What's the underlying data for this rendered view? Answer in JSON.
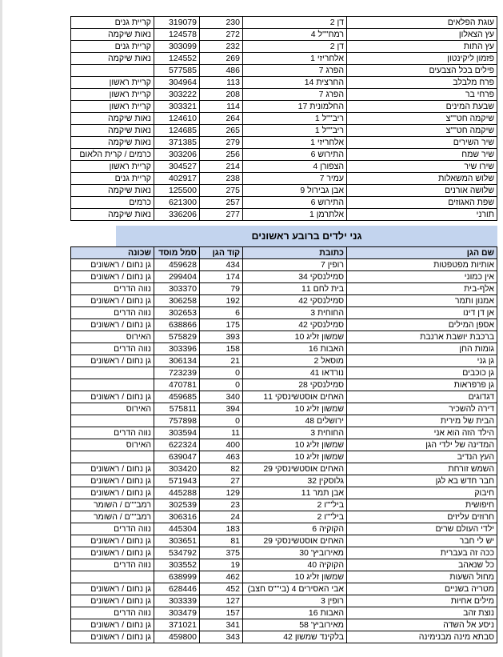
{
  "colors": {
    "title_band_bg": "#c3d4ee",
    "header_row_bg": "#cdd9ef",
    "table_border": "#000000",
    "page_edge": "#e2e2e2"
  },
  "section": {
    "title": "גני ילדים ברובע ראשונים"
  },
  "table1": {
    "rows": [
      [
        "עוגת הפלאים",
        "דן 2",
        "230",
        "319079",
        "קריית גנים"
      ],
      [
        "עץ הצאלון",
        "רמח\"\"ל 4",
        "272",
        "124578",
        "נאות שיקמה"
      ],
      [
        "עץ התות",
        "דן 2",
        "232",
        "303099",
        "קריית גנים"
      ],
      [
        "פזמון ליקינטון",
        "אלחריזי 1",
        "269",
        "124552",
        "נאות שיקמה"
      ],
      [
        "פילים בכל הצבעים",
        "הפרג 7",
        "486",
        "577585",
        ""
      ],
      [
        "פרח מלבלב",
        "החרצית 14",
        "113",
        "304964",
        "קריית ראשון"
      ],
      [
        "פרחי בר",
        "הפרג 7",
        "208",
        "303222",
        "קריית ראשון"
      ],
      [
        "שבעת המינים",
        "החלמונית 17",
        "114",
        "303321",
        "קריית ראשון"
      ],
      [
        "שיקמה חט\"\"צ",
        "ריב\"\"ל 1",
        "264",
        "124610",
        "נאות שיקמה"
      ],
      [
        "שיקמה חט\"\"צ",
        "ריב\"\"ל 1",
        "265",
        "124685",
        "נאות שיקמה"
      ],
      [
        "שיר השירים",
        "אלחריזי 1",
        "279",
        "371385",
        "נאות שיקמה"
      ],
      [
        "שיר שמח",
        "התירוש 6",
        "256",
        "303206",
        "כרמים / קרית הלאום"
      ],
      [
        "שירו שיר",
        "הצפורן 4",
        "214",
        "304527",
        "קריית ראשון"
      ],
      [
        "שלוש המשאלות",
        "עמיר 7",
        "238",
        "402917",
        "קריית גנים"
      ],
      [
        "שלושה אורנים",
        "אבן גבירול 9",
        "275",
        "125500",
        "נאות שיקמה"
      ],
      [
        "שפת האגוזים",
        "התירוש 6",
        "257",
        "621300",
        "כרמים"
      ],
      [
        "תורני",
        "אלתרמן 1",
        "277",
        "336206",
        "נאות שיקמה"
      ]
    ]
  },
  "table2": {
    "headers": [
      "שם הגן",
      "כתובת",
      "קוד הגן",
      "סמל מוסד",
      "שכונה"
    ],
    "rows": [
      [
        "אותיות מפטפטות",
        "רופין 7",
        "434",
        "459628",
        "גן נחום / ראשונים"
      ],
      [
        "אין כמוני",
        "סמילנסקי 34",
        "174",
        "299404",
        "גן נחום / ראשונים"
      ],
      [
        "אלף-בית",
        "בית לחם 11",
        "79",
        "303370",
        "נווה הדרים"
      ],
      [
        "אמנון ותמר",
        "סמילנסקי 42",
        "192",
        "306258",
        "גן נחום / ראשונים"
      ],
      [
        "אן דן דינו",
        "החוחית 3",
        "6",
        "302653",
        "נווה הדרים"
      ],
      [
        "אספן המילים",
        "סמילנסקי 42",
        "175",
        "638866",
        "גן נחום / ראשונים"
      ],
      [
        "ברכבת יושבת ארנבת",
        "שמשון זליג 10",
        "393",
        "575829",
        "האירוס"
      ],
      [
        "גומות החן",
        "האבות 16",
        "158",
        "303396",
        "נווה הדרים"
      ],
      [
        "גן גני",
        "מוסאל 2",
        "21",
        "306134",
        "גן נחום / ראשונים"
      ],
      [
        "גן כוכבים",
        "נורדאו 41",
        "0",
        "723239",
        ""
      ],
      [
        "גן פרפראות",
        "סמילנסקי 28",
        "0",
        "470781",
        ""
      ],
      [
        "דגדוגים",
        "האחים אוסטשינסקי 11",
        "340",
        "459685",
        "גן נחום / ראשונים"
      ],
      [
        "דירה להשכיר",
        "שמשון זליג 10",
        "394",
        "575811",
        "האירוס"
      ],
      [
        "הבית של מירית",
        "ירושלים 48",
        "0",
        "757898",
        ""
      ],
      [
        "הילד הזה הוא אני",
        "החוחית 3",
        "11",
        "303594",
        "נווה הדרים"
      ],
      [
        "המדינה של ילדי הגן",
        "שמשון זליג 10",
        "400",
        "622324",
        "האירוס"
      ],
      [
        "העץ הנדיב",
        "שמשון זליג 10",
        "463",
        "639047",
        ""
      ],
      [
        "השמש זורחת",
        "האחים אוסטשינסקי 29",
        "82",
        "303420",
        "גן נחום / ראשונים"
      ],
      [
        "חבר חדש בא לגן",
        "גלוסקין 32",
        "27",
        "571943",
        "גן נחום / ראשונים"
      ],
      [
        "חיבוק",
        "אבן תמר 11",
        "129",
        "445288",
        "גן נחום / ראשונים"
      ],
      [
        "חיפושית",
        "ביל\"\"ו 2",
        "23",
        "302539",
        "רמב\"\"ם / השומר"
      ],
      [
        "חרוזים עליזים",
        "ביל\"\"ו 2",
        "24",
        "306316",
        "רמב\"\"ם / השומר"
      ],
      [
        "ילדי העולם שרים",
        "הקוקיה 6",
        "183",
        "445304",
        "נווה הדרים"
      ],
      [
        "יש לי חבר",
        "האחים אוסטשינסקי 29",
        "81",
        "303651",
        "גן נחום / ראשונים"
      ],
      [
        "ככה זה בעברית",
        "מאירוביץ' 30",
        "375",
        "534792",
        "גן נחום / ראשונים"
      ],
      [
        "כל שנאהב",
        "הקוקיה 40",
        "19",
        "303552",
        "נווה הדרים"
      ],
      [
        "מחול השעות",
        "שמשון זליג 10",
        "462",
        "638999",
        ""
      ],
      [
        "מטריה בשניים",
        "אבי האסירים 4 (בי\"\"ס חצב)",
        "452",
        "628446",
        "גן נחום / ראשונים"
      ],
      [
        "מילים אחיות",
        "רופין 3",
        "127",
        "303339",
        "גן נחום / ראשונים"
      ],
      [
        "נוצת זהב",
        "האבות 16",
        "157",
        "303479",
        "נווה הדרים"
      ],
      [
        "ניסע אל השדה",
        "מאירוביץ' 58",
        "341",
        "371021",
        "גן נחום / ראשונים"
      ],
      [
        "סבתא מינה מבנימינה",
        "בלקינד שמשון 42",
        "343",
        "459800",
        "גן נחום / ראשונים"
      ]
    ]
  }
}
